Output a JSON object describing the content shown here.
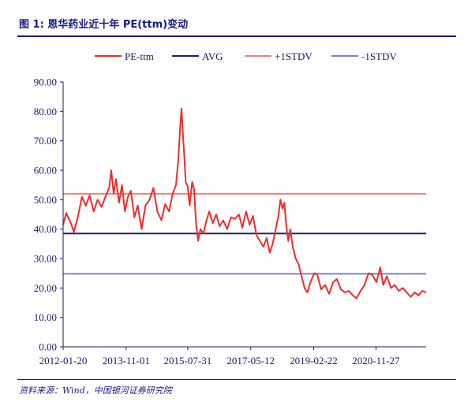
{
  "figure": {
    "title": "图 1:  恩华药业近十年 PE(ttm)变动",
    "source": "资料来源：Wind，中国银河证券研究院"
  },
  "chart_data": {
    "type": "line",
    "title": "",
    "xlabel": "",
    "ylabel": "",
    "x_range": [
      "2012-01-20",
      "2022-04-30"
    ],
    "ylim": [
      0,
      90
    ],
    "y_ticks": [
      "0.00",
      "10.00",
      "20.00",
      "30.00",
      "40.00",
      "50.00",
      "60.00",
      "70.00",
      "80.00",
      "90.00"
    ],
    "x_ticks": [
      "2012-01-20",
      "2013-11-01",
      "2015-07-31",
      "2017-05-12",
      "2019-02-22",
      "2020-11-27"
    ],
    "grid": false,
    "legend_position": "top",
    "series": [
      {
        "name": "PE-ttm",
        "color": "#ee2d2d",
        "points": [
          [
            "2012-01-20",
            41.5
          ],
          [
            "2012-02-20",
            45.5
          ],
          [
            "2012-04-10",
            42
          ],
          [
            "2012-05-10",
            39
          ],
          [
            "2012-06-20",
            44
          ],
          [
            "2012-08-01",
            51
          ],
          [
            "2012-09-10",
            48
          ],
          [
            "2012-10-20",
            51.5
          ],
          [
            "2012-12-01",
            46
          ],
          [
            "2013-01-10",
            50
          ],
          [
            "2013-02-20",
            47.5
          ],
          [
            "2013-04-01",
            51
          ],
          [
            "2013-05-10",
            54
          ],
          [
            "2013-06-01",
            60
          ],
          [
            "2013-06-25",
            52
          ],
          [
            "2013-07-20",
            57
          ],
          [
            "2013-08-20",
            49
          ],
          [
            "2013-09-20",
            55
          ],
          [
            "2013-10-20",
            46
          ],
          [
            "2013-11-20",
            51
          ],
          [
            "2013-12-20",
            53
          ],
          [
            "2014-01-25",
            44
          ],
          [
            "2014-03-01",
            48
          ],
          [
            "2014-04-10",
            40
          ],
          [
            "2014-05-20",
            48
          ],
          [
            "2014-07-01",
            50
          ],
          [
            "2014-08-10",
            54
          ],
          [
            "2014-09-20",
            46
          ],
          [
            "2014-11-01",
            43
          ],
          [
            "2014-12-10",
            48.5
          ],
          [
            "2015-01-20",
            46
          ],
          [
            "2015-02-25",
            52
          ],
          [
            "2015-04-01",
            55
          ],
          [
            "2015-04-25",
            64
          ],
          [
            "2015-05-15",
            75
          ],
          [
            "2015-05-28",
            81
          ],
          [
            "2015-06-10",
            73
          ],
          [
            "2015-06-25",
            65
          ],
          [
            "2015-07-10",
            56
          ],
          [
            "2015-07-31",
            54.5
          ],
          [
            "2015-08-20",
            48
          ],
          [
            "2015-09-15",
            56
          ],
          [
            "2015-10-05",
            53.5
          ],
          [
            "2015-10-25",
            42
          ],
          [
            "2015-11-15",
            36
          ],
          [
            "2015-12-10",
            40
          ],
          [
            "2016-01-10",
            38.5
          ],
          [
            "2016-02-10",
            43
          ],
          [
            "2016-03-10",
            46
          ],
          [
            "2016-04-15",
            42
          ],
          [
            "2016-05-20",
            45
          ],
          [
            "2016-06-25",
            41
          ],
          [
            "2016-08-01",
            43
          ],
          [
            "2016-09-10",
            40
          ],
          [
            "2016-10-20",
            44
          ],
          [
            "2016-12-01",
            43.5
          ],
          [
            "2017-01-10",
            45
          ],
          [
            "2017-02-15",
            40.5
          ],
          [
            "2017-03-25",
            46
          ],
          [
            "2017-04-30",
            41.5
          ],
          [
            "2017-06-05",
            44.5
          ],
          [
            "2017-07-10",
            38
          ],
          [
            "2017-08-15",
            36
          ],
          [
            "2017-09-20",
            34
          ],
          [
            "2017-10-25",
            37
          ],
          [
            "2017-11-25",
            32
          ],
          [
            "2017-12-25",
            35
          ],
          [
            "2018-01-25",
            40
          ],
          [
            "2018-02-20",
            44
          ],
          [
            "2018-03-15",
            50
          ],
          [
            "2018-04-05",
            47
          ],
          [
            "2018-04-25",
            49
          ],
          [
            "2018-05-15",
            41
          ],
          [
            "2018-06-05",
            36
          ],
          [
            "2018-06-25",
            40
          ],
          [
            "2018-07-20",
            34
          ],
          [
            "2018-08-20",
            30
          ],
          [
            "2018-09-20",
            28
          ],
          [
            "2018-10-20",
            24
          ],
          [
            "2018-11-20",
            20
          ],
          [
            "2018-12-20",
            18.5
          ],
          [
            "2019-01-20",
            22
          ],
          [
            "2019-03-01",
            25
          ],
          [
            "2019-04-01",
            24.5
          ],
          [
            "2019-05-10",
            19.5
          ],
          [
            "2019-06-20",
            21
          ],
          [
            "2019-08-01",
            18
          ],
          [
            "2019-09-10",
            22
          ],
          [
            "2019-10-20",
            23
          ],
          [
            "2019-12-01",
            19.5
          ],
          [
            "2020-01-10",
            18.5
          ],
          [
            "2020-02-20",
            19
          ],
          [
            "2020-04-01",
            17.5
          ],
          [
            "2020-05-10",
            16.5
          ],
          [
            "2020-06-20",
            19
          ],
          [
            "2020-08-01",
            21
          ],
          [
            "2020-09-10",
            25
          ],
          [
            "2020-10-20",
            24.5
          ],
          [
            "2020-12-01",
            22
          ],
          [
            "2021-01-10",
            27
          ],
          [
            "2021-02-10",
            21
          ],
          [
            "2021-03-20",
            24
          ],
          [
            "2021-05-01",
            20
          ],
          [
            "2021-06-10",
            21
          ],
          [
            "2021-07-20",
            19
          ],
          [
            "2021-09-01",
            20
          ],
          [
            "2021-10-10",
            18.5
          ],
          [
            "2021-11-20",
            17
          ],
          [
            "2022-01-01",
            18.5
          ],
          [
            "2022-02-10",
            17.5
          ],
          [
            "2022-03-20",
            19
          ],
          [
            "2022-04-30",
            18.5
          ]
        ]
      },
      {
        "name": "AVG",
        "color": "#1c1c80",
        "constant": 38.5
      },
      {
        "name": "+1STDV",
        "color": "#f08080",
        "constant": 52.0
      },
      {
        "name": "-1STDV",
        "color": "#8080cc",
        "constant": 24.8
      }
    ]
  }
}
